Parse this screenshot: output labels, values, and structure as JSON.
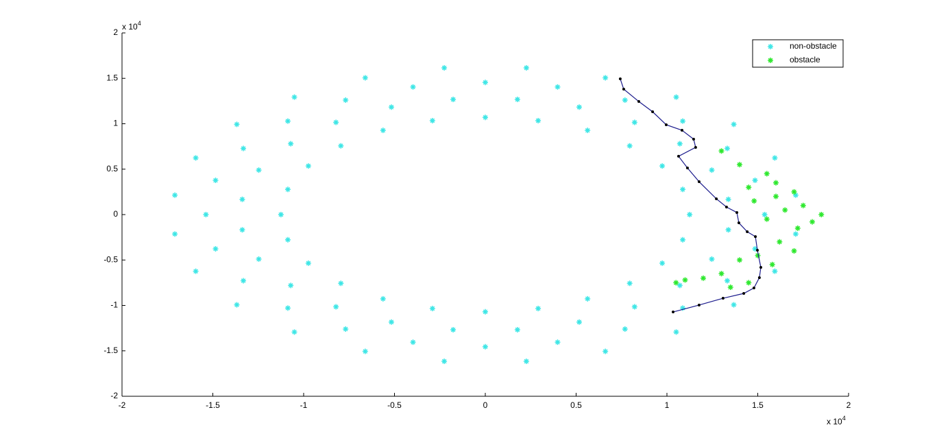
{
  "chart_data": {
    "type": "scatter",
    "x_multiplier": {
      "base": "x 10",
      "exponent": "4"
    },
    "y_multiplier": {
      "base": "x 10",
      "exponent": "4"
    },
    "xlim": [
      -2,
      2
    ],
    "ylim": [
      -2,
      2
    ],
    "xticks": [
      -2,
      -1.5,
      -1,
      -0.5,
      0,
      0.5,
      1,
      1.5,
      2
    ],
    "yticks": [
      -2,
      -1.5,
      -1,
      -0.5,
      0,
      0.5,
      1,
      1.5,
      2
    ],
    "grid": false,
    "legend": "upper right",
    "series": [
      {
        "name": "non-obstacle",
        "color": "#3ee6e6",
        "marker": "*",
        "x": [
          1.125,
          1.087,
          0.974,
          0.795,
          0.563,
          0.291,
          0,
          -0.291,
          -0.563,
          -0.795,
          -0.974,
          -1.087,
          -1.125,
          -1.087,
          -0.974,
          -0.795,
          -0.563,
          -0.291,
          0,
          0.291,
          0.563,
          0.795,
          0.974,
          1.087,
          1.338,
          1.247,
          1.071,
          0.822,
          0.517,
          0.177,
          -0.177,
          -0.517,
          -0.822,
          -1.071,
          -1.247,
          -1.338,
          -1.338,
          -1.247,
          -1.071,
          -0.822,
          -0.517,
          -0.177,
          0.177,
          0.517,
          0.822,
          1.071,
          1.247,
          1.338,
          1.538,
          1.485,
          1.332,
          1.087,
          0.769,
          0.398,
          0,
          -0.398,
          -0.769,
          -1.087,
          -1.332,
          -1.485,
          -1.538,
          -1.485,
          -1.332,
          -1.087,
          -0.769,
          -0.398,
          0,
          0.398,
          0.769,
          1.087,
          1.332,
          1.485,
          1.709,
          1.594,
          1.368,
          1.051,
          0.661,
          0.226,
          -0.226,
          -0.661,
          -1.051,
          -1.368,
          -1.594,
          -1.709,
          -1.709,
          -1.594,
          -1.368,
          -1.051,
          -0.661,
          -0.226,
          0.226,
          0.661,
          1.051,
          1.368,
          1.594,
          1.709
        ],
        "y": [
          0,
          0.277,
          0.535,
          0.757,
          0.927,
          1.034,
          1.07,
          1.034,
          0.927,
          0.757,
          0.535,
          0.277,
          0,
          -0.277,
          -0.535,
          -0.757,
          -0.927,
          -1.034,
          -1.07,
          -1.034,
          -0.927,
          -0.757,
          -0.535,
          -0.277,
          0.168,
          0.49,
          0.78,
          1.015,
          1.183,
          1.268,
          1.268,
          1.183,
          1.015,
          0.78,
          0.49,
          0.168,
          -0.168,
          -0.49,
          -0.78,
          -1.015,
          -1.183,
          -1.268,
          -1.268,
          -1.183,
          -1.015,
          -0.78,
          -0.49,
          -0.168,
          0,
          0.377,
          0.728,
          1.029,
          1.26,
          1.405,
          1.455,
          1.405,
          1.26,
          1.029,
          0.728,
          0.377,
          0,
          -0.377,
          -0.728,
          -1.029,
          -1.26,
          -1.405,
          -1.455,
          -1.405,
          -1.26,
          -1.029,
          -0.728,
          -0.377,
          0.214,
          0.624,
          0.993,
          1.293,
          1.506,
          1.615,
          1.615,
          1.506,
          1.293,
          0.993,
          0.624,
          0.214,
          -0.214,
          -0.624,
          -0.993,
          -1.293,
          -1.506,
          -1.615,
          -1.615,
          -1.506,
          -1.293,
          -0.993,
          -0.624,
          -0.214
        ]
      },
      {
        "name": "obstacle",
        "color": "#2ee82e",
        "marker": "*",
        "x": [
          1.3,
          1.4,
          1.55,
          1.45,
          1.6,
          1.7,
          1.75,
          1.85,
          1.65,
          1.55,
          1.72,
          1.8,
          1.62,
          1.5,
          1.7,
          1.58,
          1.4,
          1.3,
          1.2,
          1.1,
          1.05,
          1.45,
          1.35,
          1.6,
          1.48
        ],
        "y": [
          0.7,
          0.55,
          0.45,
          0.3,
          0.2,
          0.25,
          0.1,
          0,
          0.05,
          -0.05,
          -0.15,
          -0.08,
          -0.3,
          -0.45,
          -0.4,
          -0.55,
          -0.5,
          -0.65,
          -0.7,
          -0.72,
          -0.75,
          -0.75,
          -0.8,
          0.35,
          0.15
        ]
      },
      {
        "marker": "line",
        "color": "#1a1a8c",
        "vertex_color": "#000000",
        "x": [
          0.743,
          0.762,
          0.845,
          0.921,
          0.996,
          1.083,
          1.147,
          1.158,
          1.064,
          1.113,
          1.177,
          1.272,
          1.328,
          1.385,
          1.396,
          1.442,
          1.487,
          1.498,
          1.517,
          1.509,
          1.479,
          1.423,
          1.309,
          1.177,
          1.034
        ],
        "y": [
          1.494,
          1.381,
          1.245,
          1.132,
          0.989,
          0.928,
          0.83,
          0.74,
          0.642,
          0.513,
          0.362,
          0.174,
          0.083,
          0.023,
          -0.091,
          -0.189,
          -0.242,
          -0.392,
          -0.581,
          -0.694,
          -0.808,
          -0.868,
          -0.921,
          -0.996,
          -1.072
        ]
      }
    ]
  }
}
